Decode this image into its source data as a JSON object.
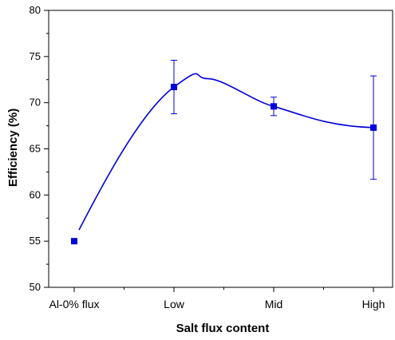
{
  "chart_data": {
    "type": "scatter",
    "title": "",
    "xlabel": "Salt flux content",
    "ylabel": "Efficiency (%)",
    "categories": [
      "Al-0% flux",
      "Low",
      "Mid",
      "High"
    ],
    "ylim": [
      50,
      80
    ],
    "yticks": [
      50,
      55,
      60,
      65,
      70,
      75,
      80
    ],
    "grid": false,
    "legend": "none",
    "series": [
      {
        "values": [
          55.0,
          71.7,
          69.6,
          67.3
        ],
        "error_low": [
          null,
          68.8,
          68.6,
          61.7
        ],
        "error_high": [
          null,
          74.6,
          70.6,
          72.9
        ],
        "marker": "square",
        "fit": "smooth spline",
        "color": "#0000dd"
      }
    ]
  }
}
